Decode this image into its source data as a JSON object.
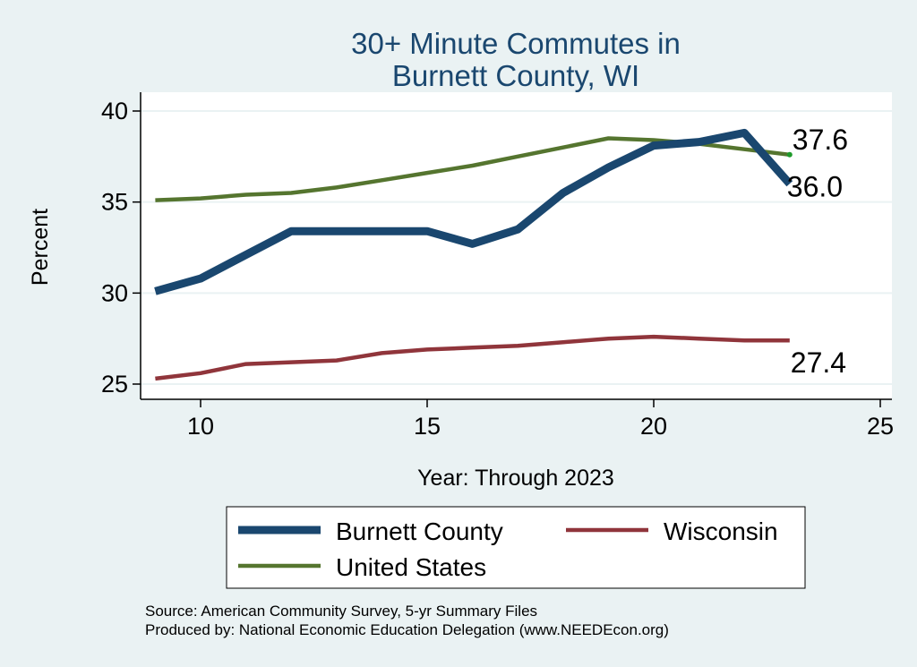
{
  "chart_data": {
    "type": "line",
    "title": [
      "30+ Minute Commutes in",
      "Burnett County, WI"
    ],
    "xlabel": "Year: Through 2023",
    "ylabel": "Percent",
    "xlim": [
      9,
      25
    ],
    "ylim": [
      25,
      40
    ],
    "x_ticks": [
      10,
      15,
      20,
      25
    ],
    "y_ticks": [
      25,
      30,
      35,
      40
    ],
    "grid": true,
    "legend_position": "bottom",
    "series": [
      {
        "name": "Burnett County",
        "color": "#1a476f",
        "width": 9,
        "x": [
          9,
          10,
          11,
          12,
          13,
          14,
          15,
          16,
          17,
          18,
          19,
          20,
          21,
          22,
          23
        ],
        "y": [
          30.1,
          30.8,
          32.1,
          33.4,
          33.4,
          33.4,
          33.4,
          32.7,
          33.5,
          35.5,
          36.9,
          38.1,
          38.3,
          38.8,
          36.0
        ],
        "end_label": "36.0"
      },
      {
        "name": "Wisconsin",
        "color": "#90353b",
        "width": 4.5,
        "x": [
          9,
          10,
          11,
          12,
          13,
          14,
          15,
          16,
          17,
          18,
          19,
          20,
          21,
          22,
          23
        ],
        "y": [
          25.3,
          25.6,
          26.1,
          26.2,
          26.3,
          26.7,
          26.9,
          27.0,
          27.1,
          27.3,
          27.5,
          27.6,
          27.5,
          27.4,
          27.4
        ],
        "end_label": "27.4"
      },
      {
        "name": "United States",
        "color": "#55752f",
        "width": 4.5,
        "x": [
          9,
          10,
          11,
          12,
          13,
          14,
          15,
          16,
          17,
          18,
          19,
          20,
          21,
          22,
          23
        ],
        "y": [
          35.1,
          35.2,
          35.4,
          35.5,
          35.8,
          36.2,
          36.6,
          37.0,
          37.5,
          38.0,
          38.5,
          38.4,
          38.2,
          37.9,
          37.6
        ],
        "end_label": "37.6"
      }
    ],
    "notes": [
      "Source: American Community Survey, 5-yr Summary Files",
      "Produced by: National Economic Education Delegation (www.NEEDEcon.org)"
    ]
  }
}
